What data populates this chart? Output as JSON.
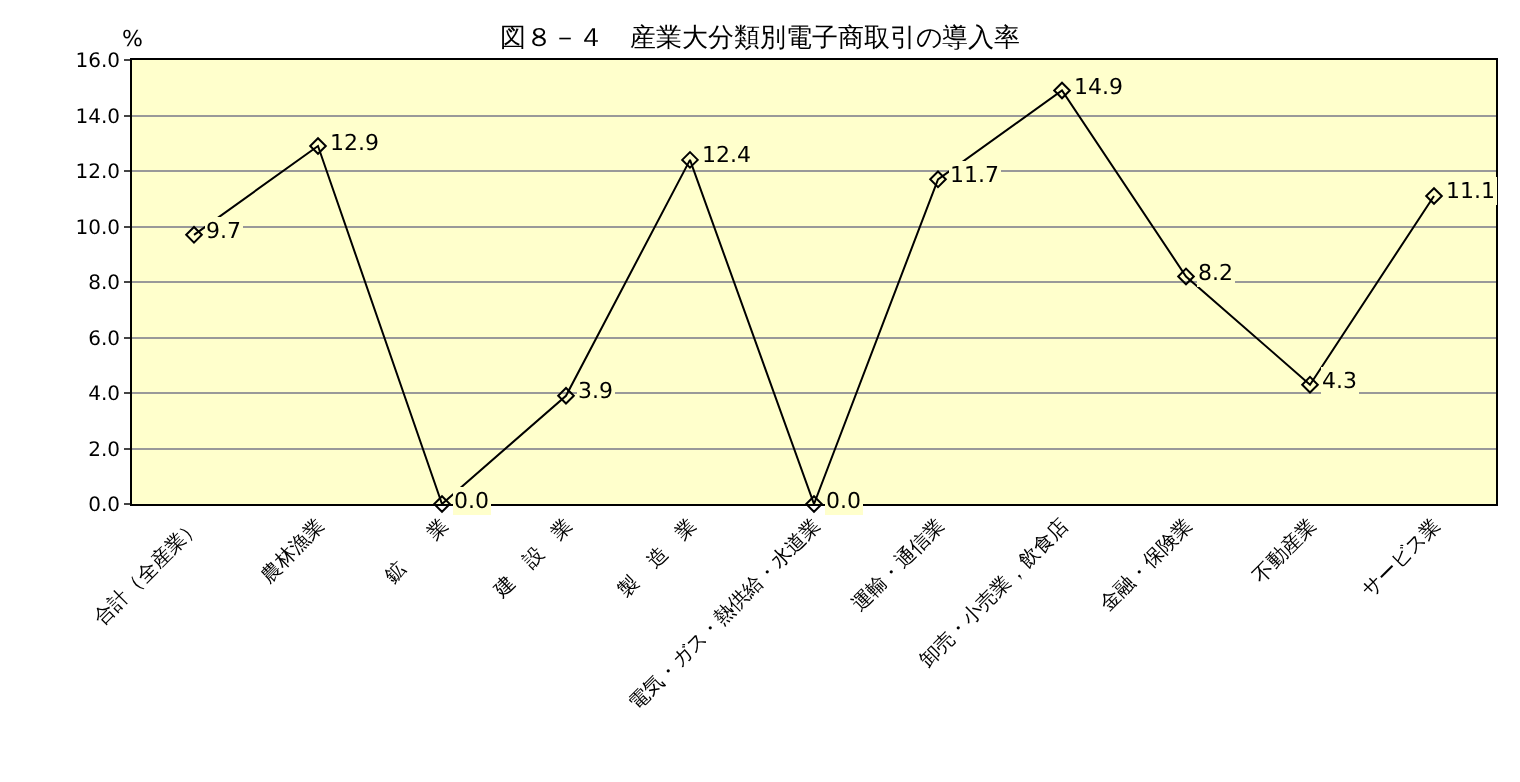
{
  "chart_data": {
    "type": "line",
    "title": "図８－４　産業大分類別電子商取引の導入率",
    "ylabel": "%",
    "categories": [
      "合計（全産業）",
      "農林漁業",
      "鉱　　業",
      "建　設　業",
      "製　造　業",
      "電気・ガス・熱供給・水道業",
      "運輸・通信業",
      "卸売・小売業，飲食店",
      "金融・保険業",
      "不動産業",
      "サービス業"
    ],
    "series": [
      {
        "color": "#000000",
        "values": [
          9.7,
          12.9,
          0.0,
          3.9,
          12.4,
          0.0,
          11.7,
          14.9,
          8.2,
          4.3,
          11.1
        ]
      }
    ],
    "ylim": [
      0,
      16
    ],
    "yticks": [
      {
        "value": 0,
        "label": "0.0"
      },
      {
        "value": 2,
        "label": "2.0"
      },
      {
        "value": 4,
        "label": "4.0"
      },
      {
        "value": 6,
        "label": "6.0"
      },
      {
        "value": 8,
        "label": "8.0"
      },
      {
        "value": 10,
        "label": "10.0"
      },
      {
        "value": 12,
        "label": "12.0"
      },
      {
        "value": 14,
        "label": "14.0"
      },
      {
        "value": 16,
        "label": "16.0"
      }
    ],
    "grid": "y",
    "marker": "diamond",
    "line_style": "solid",
    "value_labels": [
      "9.7",
      "12.9",
      "0.0",
      "3.9",
      "12.4",
      "0.0",
      "11.7",
      "14.9",
      "8.2",
      "4.3",
      "11.1"
    ]
  }
}
